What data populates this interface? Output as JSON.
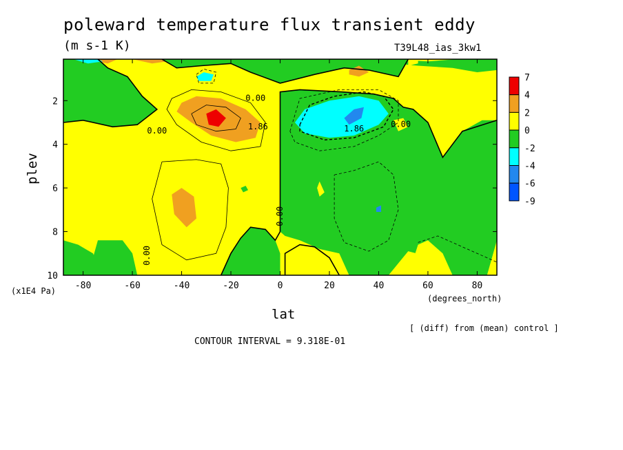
{
  "header": {
    "title": "poleward temperature flux transient eddy",
    "units": "(m s-1 K)",
    "run": "T39L48_ias_3kw1"
  },
  "footer": {
    "y_unit": "(x1E4 Pa)",
    "x_unit": "(degrees_north)",
    "diff_note": "[ (diff) from (mean) control ]",
    "contour_interval": "CONTOUR INTERVAL = 9.318E-01"
  },
  "chart_data": {
    "type": "heatmap",
    "title": "poleward temperature flux transient eddy",
    "xlabel": "lat",
    "ylabel": "plev",
    "xlim": [
      -88,
      88
    ],
    "ylim": [
      10,
      0.1
    ],
    "x_ticks": [
      -80,
      -60,
      -40,
      -20,
      0,
      20,
      40,
      60,
      80
    ],
    "y_ticks": [
      2,
      4,
      6,
      8,
      10
    ],
    "colorbar": {
      "levels": [
        7,
        4,
        2,
        0,
        -2,
        -4,
        -6,
        -9
      ],
      "colors": [
        "#ee0000",
        "#f0a020",
        "#ffff00",
        "#22cc22",
        "#00ffff",
        "#2288ee",
        "#0055ff"
      ]
    },
    "contour_labels": [
      {
        "text": "0.00",
        "lat": -10,
        "plev": 1.9
      },
      {
        "text": "0.00",
        "lat": -50,
        "plev": 3.4
      },
      {
        "text": "1.86",
        "lat": -9,
        "plev": 3.2
      },
      {
        "text": "1.86",
        "lat": 30,
        "plev": 3.3
      },
      {
        "text": "0.00",
        "lat": 49,
        "plev": 3.1
      },
      {
        "text": "0.00",
        "lat": 0,
        "plev": 7.3
      },
      {
        "text": "0.00",
        "lat": -54,
        "plev": 9.1
      }
    ],
    "features": [
      {
        "kind": "max",
        "value_level": 4,
        "lat": -26,
        "plev": 2.8
      },
      {
        "kind": "max",
        "value_level": 2,
        "lat": -39,
        "plev": 7.0
      },
      {
        "kind": "min",
        "value_level": -4,
        "lat": 30,
        "plev": 2.8
      },
      {
        "kind": "min",
        "value_level": -4,
        "lat": -30,
        "plev": 0.9
      },
      {
        "kind": "min",
        "value_level": -4,
        "lat": -75,
        "plev": 0.1
      }
    ],
    "grid": false,
    "legend_position": "right"
  }
}
